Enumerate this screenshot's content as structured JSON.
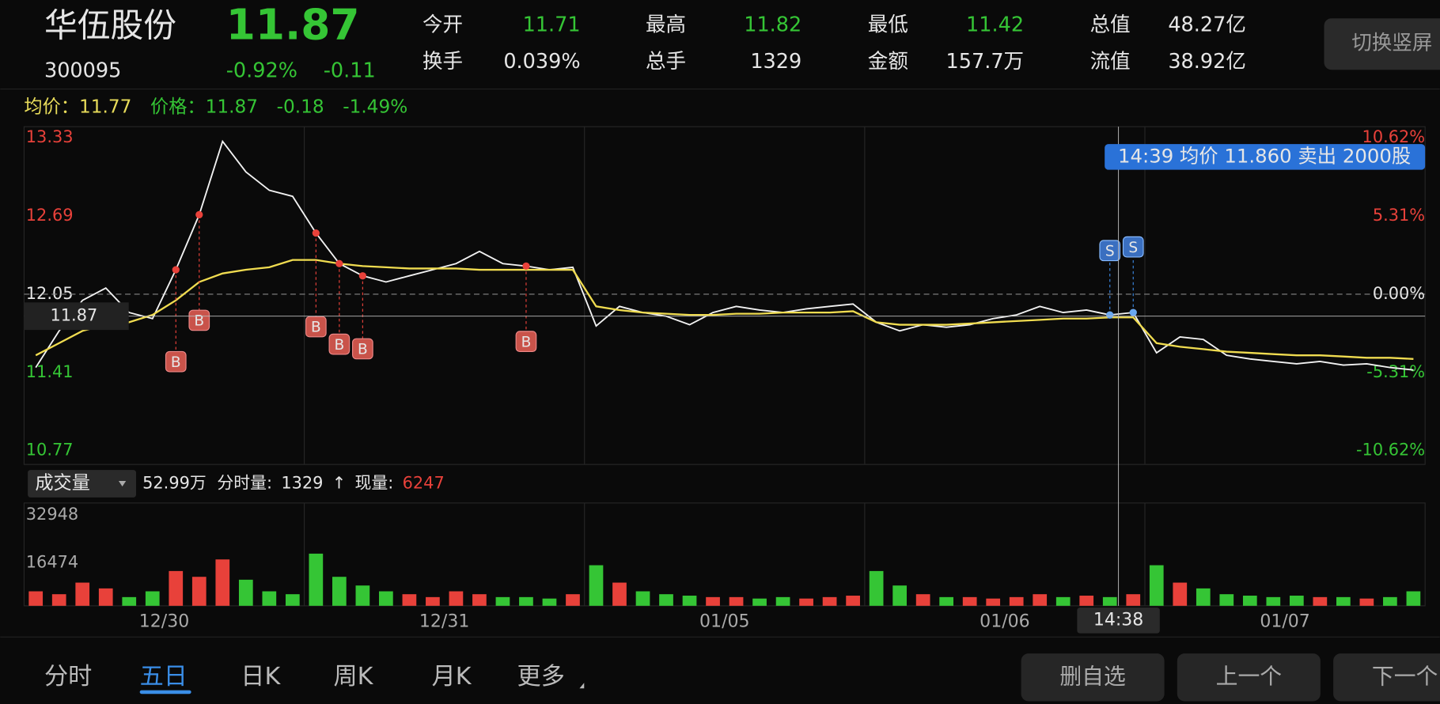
{
  "header": {
    "name": "华伍股份",
    "price": 11.87,
    "code": "300095",
    "change_pct": "-0.92%",
    "change": -0.11
  },
  "stats": [
    {
      "label": "今开",
      "value": 11.71
    },
    {
      "label": "换手",
      "value": "0.039%"
    },
    {
      "label": "最高",
      "value": 11.82
    },
    {
      "label": "总手",
      "value": 1329
    },
    {
      "label": "最低",
      "value": 11.42
    },
    {
      "label": "金额",
      "value": "157.7万"
    },
    {
      "label": "总值",
      "value": "48.27亿"
    },
    {
      "label": "流值",
      "value": "38.92亿"
    }
  ],
  "rotate_button": "切换竖屏",
  "info": {
    "avg_label": "均价：",
    "avg": 11.77,
    "price_label": "价格：",
    "price": 11.87,
    "change": -0.18,
    "change_pct": "-1.49%"
  },
  "chart_data": {
    "type": "line",
    "x_labels": [
      "12/30",
      "12/31",
      "01/05",
      "01/06",
      "01/07"
    ],
    "ylim": [
      10.77,
      13.33
    ],
    "yticks": [
      13.33,
      12.69,
      12.05,
      11.41,
      10.77
    ],
    "y2lim": [
      -10.62,
      10.62
    ],
    "y2ticks": [
      {
        "value": 10.62,
        "label": "10.62%"
      },
      {
        "value": 5.31,
        "label": "5.31%"
      },
      {
        "value": 0,
        "label": "0.00%"
      },
      {
        "value": -5.31,
        "label": "-5.31%"
      },
      {
        "value": -10.62,
        "label": "-10.62%"
      }
    ],
    "series": [
      {
        "color": "#f2f2f2",
        "values": [
          11.45,
          11.75,
          12.0,
          12.1,
          11.9,
          11.85,
          12.25,
          12.7,
          13.3,
          13.05,
          12.9,
          12.85,
          12.55,
          12.3,
          12.2,
          12.15,
          12.2,
          12.25,
          12.3,
          12.4,
          12.3,
          12.28,
          12.25,
          12.27,
          11.79,
          11.95,
          11.9,
          11.87,
          11.8,
          11.9,
          11.95,
          11.92,
          11.9,
          11.93,
          11.95,
          11.97,
          11.82,
          11.75,
          11.8,
          11.78,
          11.8,
          11.85,
          11.88,
          11.95,
          11.9,
          11.92,
          11.88,
          11.9,
          11.57,
          11.7,
          11.68,
          11.55,
          11.52,
          11.5,
          11.48,
          11.5,
          11.47,
          11.48,
          11.45,
          11.43
        ]
      },
      {
        "color": "#f0dc50",
        "values": [
          11.55,
          11.65,
          11.75,
          11.8,
          11.82,
          11.88,
          12.0,
          12.15,
          12.22,
          12.25,
          12.27,
          12.33,
          12.33,
          12.3,
          12.28,
          12.27,
          12.26,
          12.26,
          12.26,
          12.25,
          12.25,
          12.25,
          12.25,
          12.25,
          11.95,
          11.92,
          11.9,
          11.89,
          11.88,
          11.88,
          11.89,
          11.89,
          11.9,
          11.9,
          11.9,
          11.91,
          11.82,
          11.8,
          11.8,
          11.8,
          11.81,
          11.82,
          11.83,
          11.84,
          11.85,
          11.85,
          11.86,
          11.86,
          11.65,
          11.62,
          11.6,
          11.58,
          11.57,
          11.56,
          11.55,
          11.55,
          11.54,
          11.53,
          11.53,
          11.52
        ]
      }
    ],
    "volume": {
      "values": [
        5000,
        4000,
        8000,
        6000,
        3000,
        5000,
        12000,
        10000,
        16000,
        9000,
        5000,
        4000,
        18000,
        10000,
        7000,
        5000,
        4000,
        3000,
        5000,
        4000,
        3000,
        3000,
        2500,
        4000,
        14000,
        8000,
        5000,
        4000,
        3500,
        3000,
        3000,
        2500,
        3000,
        2500,
        3000,
        3500,
        12000,
        7000,
        4000,
        3000,
        3000,
        2500,
        3000,
        4000,
        3000,
        3500,
        3000,
        4000,
        14000,
        8000,
        6000,
        4000,
        3500,
        3000,
        3500,
        3000,
        3000,
        2500,
        3000,
        5000
      ],
      "ylim": [
        0,
        32948
      ],
      "yticks": [
        32948,
        16474
      ],
      "up_color": "#e8413a",
      "down_color": "#35c535"
    },
    "markers": {
      "buy": [
        "B",
        "B",
        "B",
        "B",
        "B",
        "B"
      ],
      "sell": [
        "S",
        "S"
      ]
    },
    "crosshair": {
      "price": 11.87,
      "time": "14:38",
      "tooltip": "14:39 均价 11.860 卖出 2000股"
    }
  },
  "volume_bar": {
    "selector": "成交量",
    "total": "52.99万",
    "period_label": "分时量:",
    "period": 1329,
    "arrow": "↑",
    "current_label": "现量:",
    "current": 6247
  },
  "tabs": [
    "分时",
    "五日",
    "日K",
    "周K",
    "月K",
    "更多"
  ],
  "buttons": [
    "删自选",
    "上一个",
    "下一个"
  ]
}
